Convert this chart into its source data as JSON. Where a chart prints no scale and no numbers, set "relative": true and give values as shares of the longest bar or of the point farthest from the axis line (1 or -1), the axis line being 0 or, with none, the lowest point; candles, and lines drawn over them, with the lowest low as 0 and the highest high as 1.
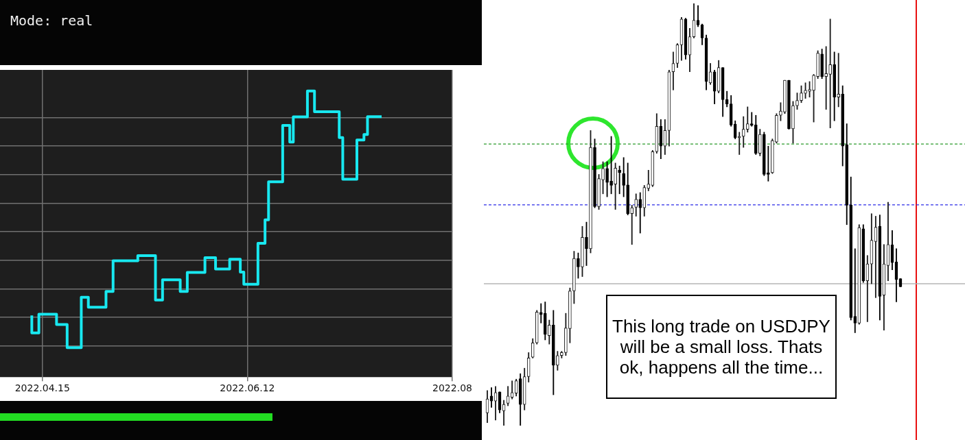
{
  "chart_data": [
    {
      "type": "step",
      "annotations": [
        "Mode: real"
      ],
      "relative": true,
      "color": "#18e8f0",
      "grid": true,
      "x": [
        "2022-04-12",
        "2022-04-14",
        "2022-04-19",
        "2022-04-22",
        "2022-04-26",
        "2022-04-28",
        "2022-05-03",
        "2022-05-05",
        "2022-05-12",
        "2022-05-17",
        "2022-05-19",
        "2022-05-24",
        "2022-05-26",
        "2022-05-31",
        "2022-06-03",
        "2022-06-07",
        "2022-06-10",
        "2022-06-11",
        "2022-06-15",
        "2022-06-17",
        "2022-06-18",
        "2022-06-22",
        "2022-06-24",
        "2022-06-25",
        "2022-06-29",
        "2022-07-01",
        "2022-07-08",
        "2022-07-09",
        "2022-07-13",
        "2022-07-15",
        "2022-07-16",
        "2022-07-20"
      ],
      "values": [
        0.125,
        0.057,
        0.13,
        0.09,
        0,
        0.196,
        0.157,
        0.219,
        0.338,
        0.358,
        0.185,
        0.264,
        0.219,
        0.293,
        0.35,
        0.306,
        0.344,
        0.294,
        0.247,
        0.406,
        0.498,
        0.646,
        0.866,
        0.801,
        0.899,
        1,
        0.919,
        0.818,
        0.656,
        0.809,
        0.83,
        0.9
      ],
      "xlim": [
        "2022-04-03",
        "2022-08-09"
      ],
      "xticks": [
        {
          "value": "2022-04-15",
          "label": "2022.04.15"
        },
        {
          "value": "2022-06-12",
          "label": "2022.06.12"
        },
        {
          "value": "2022-08-09",
          "label": "2022.08"
        }
      ]
    },
    {
      "type": "candlestick",
      "relative": true,
      "annotations": [
        "This long trade on USDJPY will be a small loss. Thats ok, happens all the time..."
      ],
      "ref_lines": [
        {
          "axis": "y",
          "value": 0.667,
          "color": "#2a9a2a",
          "line_style": "dashed"
        },
        {
          "axis": "y",
          "value": 0.523,
          "color": "#2a2ae8",
          "line_style": "dashed"
        },
        {
          "axis": "y",
          "value": 0.336,
          "color": "#b4b4b4",
          "line_style": "solid"
        }
      ],
      "categories": [
        null,
        null,
        null,
        null,
        null,
        null,
        null,
        null,
        null,
        null,
        null,
        null,
        null,
        null,
        null,
        null,
        null,
        null,
        null,
        null,
        null,
        null,
        null,
        null,
        null,
        null,
        null,
        null,
        null,
        null,
        null,
        null,
        null,
        null,
        null,
        null,
        null,
        null,
        null,
        null,
        null,
        null,
        null,
        null,
        null,
        null,
        null,
        null,
        null,
        null,
        null,
        null,
        null,
        null,
        null,
        null,
        null,
        null,
        null,
        null,
        null,
        null,
        null,
        null,
        null,
        null,
        null,
        null,
        null,
        null,
        null,
        null,
        null,
        null,
        null,
        null,
        null,
        null,
        null,
        null,
        null,
        null,
        null,
        null,
        null,
        null,
        null,
        null,
        null,
        null,
        null,
        null,
        null,
        null,
        null,
        null,
        null,
        null,
        null,
        null,
        null
      ],
      "ohlc": [
        [
          0.03,
          0.083,
          0.007,
          0.063
        ],
        [
          0.07,
          0.09,
          0.043,
          0.058
        ],
        [
          0.058,
          0.093,
          0.013,
          0.078
        ],
        [
          0.08,
          0.08,
          0.03,
          0.037
        ],
        [
          0.035,
          0.06,
          0,
          0.05
        ],
        [
          0.053,
          0.093,
          0.047,
          0.07
        ],
        [
          0.067,
          0.106,
          0.063,
          0.078
        ],
        [
          0.077,
          0.11,
          0.07,
          0.106
        ],
        [
          0.111,
          0.123,
          0,
          0.05
        ],
        [
          0.05,
          0.136,
          0.037,
          0.116
        ],
        [
          0.116,
          0.173,
          0.103,
          0.16
        ],
        [
          0.162,
          0.206,
          0.16,
          0.196
        ],
        [
          0.196,
          0.273,
          0.193,
          0.269
        ],
        [
          0.268,
          0.289,
          0.243,
          0.263
        ],
        [
          0.266,
          0.293,
          0.203,
          0.216
        ],
        [
          0.213,
          0.25,
          0.193,
          0.238
        ],
        [
          0.238,
          0.273,
          0.073,
          0.143
        ],
        [
          0.143,
          0.176,
          0.131,
          0.166
        ],
        [
          0.166,
          0.176,
          0.16,
          0.173
        ],
        [
          0.173,
          0.266,
          0.166,
          0.231
        ],
        [
          0.23,
          0.326,
          0.196,
          0.319
        ],
        [
          0.319,
          0.413,
          0.289,
          0.396
        ],
        [
          0.396,
          0.409,
          0.349,
          0.376
        ],
        [
          0.376,
          0.472,
          0.353,
          0.446
        ],
        [
          0.446,
          0.482,
          0.379,
          0.419
        ],
        [
          0.419,
          0.699,
          0.409,
          0.659
        ],
        [
          0.659,
          0.679,
          0.516,
          0.519
        ],
        [
          0.519,
          0.595,
          0.512,
          0.585
        ],
        [
          0.582,
          0.625,
          0.549,
          0.609
        ],
        [
          0.609,
          0.625,
          0.542,
          0.576
        ],
        [
          0.579,
          0.685,
          0.549,
          0.569
        ],
        [
          0.572,
          0.622,
          0.512,
          0.61
        ],
        [
          0.605,
          0.615,
          0.549,
          0.599
        ],
        [
          0.597,
          0.635,
          0.542,
          0.569
        ],
        [
          0.57,
          0.622,
          0.499,
          0.502
        ],
        [
          0.502,
          0.522,
          0.429,
          0.516
        ],
        [
          0.517,
          0.549,
          0.496,
          0.536
        ],
        [
          0.536,
          0.552,
          0.456,
          0.516
        ],
        [
          0.516,
          0.569,
          0.496,
          0.564
        ],
        [
          0.562,
          0.605,
          0.556,
          0.572
        ],
        [
          0.569,
          0.652,
          0.566,
          0.649
        ],
        [
          0.649,
          0.739,
          0.645,
          0.709
        ],
        [
          0.709,
          0.725,
          0.632,
          0.662
        ],
        [
          0.662,
          0.725,
          0.642,
          0.699
        ],
        [
          0.699,
          0.842,
          0.662,
          0.838
        ],
        [
          0.838,
          0.885,
          0.795,
          0.858
        ],
        [
          0.858,
          0.905,
          0.848,
          0.902
        ],
        [
          0.902,
          0.967,
          0.865,
          0.963
        ],
        [
          0.963,
          0.965,
          0.868,
          0.878
        ],
        [
          0.878,
          0.941,
          0.838,
          0.921
        ],
        [
          0.921,
          1,
          0.918,
          0.96
        ],
        [
          0.96,
          0.995,
          0.945,
          0.949
        ],
        [
          0.949,
          0.951,
          0.902,
          0.918
        ],
        [
          0.918,
          0.925,
          0.795,
          0.815
        ],
        [
          0.812,
          0.858,
          0.808,
          0.838
        ],
        [
          0.838,
          0.842,
          0.762,
          0.792
        ],
        [
          0.792,
          0.865,
          0.788,
          0.848
        ],
        [
          0.848,
          0.848,
          0.732,
          0.772
        ],
        [
          0.772,
          0.792,
          0.755,
          0.762
        ],
        [
          0.762,
          0.782,
          0.709,
          0.712
        ],
        [
          0.714,
          0.722,
          0.679,
          0.682
        ],
        [
          0.682,
          0.695,
          0.642,
          0.685
        ],
        [
          0.685,
          0.732,
          0.659,
          0.702
        ],
        [
          0.702,
          0.755,
          0.695,
          0.715
        ],
        [
          0.715,
          0.742,
          0.709,
          0.711
        ],
        [
          0.712,
          0.735,
          0.642,
          0.645
        ],
        [
          0.645,
          0.702,
          0.639,
          0.69
        ],
        [
          0.69,
          0.695,
          0.592,
          0.595
        ],
        [
          0.599,
          0.662,
          0.579,
          0.595
        ],
        [
          0.599,
          0.679,
          0.597,
          0.675
        ],
        [
          0.672,
          0.739,
          0.669,
          0.735
        ],
        [
          0.735,
          0.765,
          0.722,
          0.745
        ],
        [
          0.743,
          0.818,
          0.739,
          0.818
        ],
        [
          0.818,
          0.818,
          0.702,
          0.703
        ],
        [
          0.703,
          0.768,
          0.669,
          0.758
        ],
        [
          0.758,
          0.788,
          0.749,
          0.77
        ],
        [
          0.77,
          0.805,
          0.765,
          0.788
        ],
        [
          0.787,
          0.812,
          0.775,
          0.794
        ],
        [
          0.792,
          0.815,
          0.778,
          0.796
        ],
        [
          0.794,
          0.832,
          0.719,
          0.83
        ],
        [
          0.827,
          0.888,
          0.822,
          0.882
        ],
        [
          0.88,
          0.892,
          0.822,
          0.827
        ],
        [
          0.827,
          0.898,
          0.749,
          0.834
        ],
        [
          0.832,
          0.963,
          0.705,
          0.855
        ],
        [
          0.855,
          0.885,
          0.722,
          0.778
        ],
        [
          0.778,
          0.882,
          0.755,
          0.785
        ],
        [
          0.785,
          0.805,
          0.615,
          0.662
        ],
        [
          0.665,
          0.715,
          0.476,
          0.522
        ],
        [
          0.522,
          0.589,
          0.25,
          0.256
        ],
        [
          0.259,
          0.419,
          0.22,
          0.243
        ],
        [
          0.243,
          0.476,
          0.24,
          0.469
        ],
        [
          0.466,
          0.476,
          0.339,
          0.343
        ],
        [
          0.343,
          0.403,
          0.246,
          0.383
        ],
        [
          0.383,
          0.502,
          0.336,
          0.439
        ],
        [
          0.436,
          0.496,
          0.303,
          0.47
        ],
        [
          0.472,
          0.499,
          0.25,
          0.306
        ],
        [
          0.309,
          0.429,
          0.226,
          0.383
        ],
        [
          0.379,
          0.529,
          0.343,
          0.429
        ],
        [
          0.428,
          0.462,
          0.369,
          0.386
        ],
        [
          0.388,
          0.419,
          0.293,
          0.346
        ],
        [
          0.348,
          0.348,
          0.329,
          0.329
        ]
      ]
    }
  ]
}
